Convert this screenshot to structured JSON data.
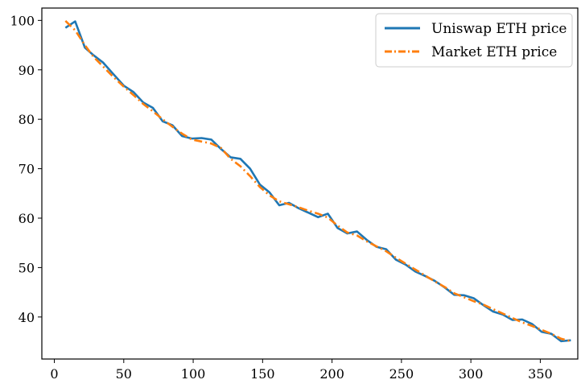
{
  "chart_data": {
    "type": "line",
    "title": "",
    "xlabel": "",
    "ylabel": "",
    "xlim": [
      -9,
      377
    ],
    "ylim": [
      31.5,
      102.5
    ],
    "xticks": [
      0,
      50,
      100,
      150,
      200,
      250,
      300,
      350
    ],
    "yticks": [
      40,
      50,
      60,
      70,
      80,
      90,
      100
    ],
    "grid": false,
    "legend": {
      "placement": "upper right"
    },
    "series": [
      {
        "name": "Uniswap ETH price",
        "color": "#1f77b4",
        "linestyle": "solid",
        "x": [
          8,
          15,
          22,
          28,
          35,
          42,
          50,
          57,
          64,
          71,
          78,
          85,
          92,
          99,
          106,
          113,
          120,
          127,
          134,
          141,
          148,
          155,
          162,
          169,
          176,
          183,
          190,
          197,
          204,
          211,
          218,
          225,
          232,
          239,
          246,
          253,
          260,
          267,
          274,
          281,
          288,
          295,
          302,
          309,
          316,
          323,
          330,
          337,
          344,
          351,
          358,
          365,
          372
        ],
        "y": [
          98.5,
          99.8,
          94.5,
          93.0,
          91.5,
          89.3,
          86.8,
          85.5,
          83.4,
          82.3,
          79.6,
          78.8,
          76.6,
          76.1,
          76.2,
          75.9,
          74.0,
          72.3,
          72.0,
          70.0,
          66.8,
          65.2,
          62.6,
          63.1,
          62.0,
          61.1,
          60.2,
          60.9,
          58.0,
          56.9,
          57.3,
          55.6,
          54.2,
          53.7,
          51.6,
          50.6,
          49.2,
          48.3,
          47.3,
          46.0,
          44.5,
          44.4,
          43.8,
          42.4,
          41.1,
          40.5,
          39.4,
          39.5,
          38.6,
          37.0,
          36.6,
          35.1,
          35.3
        ]
      },
      {
        "name": "Market ETH price",
        "color": "#ff7f0e",
        "linestyle": "dashdot",
        "x": [
          8,
          15,
          22,
          28,
          35,
          42,
          50,
          57,
          64,
          71,
          78,
          85,
          92,
          99,
          106,
          113,
          120,
          127,
          134,
          141,
          148,
          155,
          162,
          169,
          176,
          183,
          190,
          197,
          204,
          211,
          218,
          225,
          232,
          239,
          246,
          253,
          260,
          267,
          274,
          281,
          288,
          295,
          302,
          309,
          316,
          323,
          330,
          337,
          344,
          351,
          358,
          365,
          372
        ],
        "y": [
          99.9,
          98.0,
          95.0,
          92.7,
          90.7,
          88.7,
          86.6,
          84.9,
          83.1,
          81.6,
          80.0,
          78.5,
          77.1,
          75.9,
          75.5,
          75.1,
          74.2,
          72.0,
          70.5,
          68.5,
          66.3,
          64.6,
          63.4,
          62.8,
          62.2,
          61.5,
          60.9,
          60.1,
          58.5,
          57.1,
          56.5,
          55.3,
          54.3,
          53.3,
          52.0,
          50.8,
          49.6,
          48.4,
          47.2,
          46.1,
          44.8,
          44.0,
          43.2,
          42.5,
          41.6,
          40.7,
          39.8,
          38.9,
          38.2,
          37.4,
          36.6,
          35.6,
          35.1
        ]
      }
    ]
  }
}
